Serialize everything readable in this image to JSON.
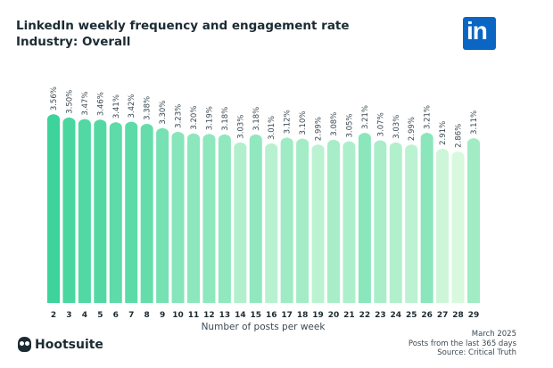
{
  "header": {
    "title": "LinkedIn weekly frequency and engagement rate",
    "subtitle": "Industry: Overall"
  },
  "logo": {
    "text": "in",
    "color": "#0a66c2"
  },
  "brand": {
    "name": "Hootsuite",
    "icon": "owl-icon"
  },
  "footer": {
    "date": "March 2025",
    "note": "Posts from the last 365 days",
    "source": "Source: Critical Truth"
  },
  "chart_data": {
    "type": "bar",
    "title": "LinkedIn weekly frequency and engagement rate",
    "xlabel": "Number of posts per week",
    "ylabel": "",
    "ylim": [
      0,
      3.56
    ],
    "grid": false,
    "categories": [
      "2",
      "3",
      "4",
      "5",
      "6",
      "7",
      "8",
      "9",
      "10",
      "11",
      "12",
      "13",
      "14",
      "15",
      "16",
      "17",
      "18",
      "19",
      "20",
      "21",
      "22",
      "23",
      "24",
      "25",
      "26",
      "27",
      "28",
      "29"
    ],
    "values": [
      3.56,
      3.5,
      3.47,
      3.46,
      3.41,
      3.42,
      3.38,
      3.3,
      3.23,
      3.2,
      3.19,
      3.18,
      3.03,
      3.18,
      3.01,
      3.12,
      3.1,
      2.99,
      3.08,
      3.05,
      3.21,
      3.07,
      3.03,
      2.99,
      3.21,
      2.91,
      2.86,
      3.11
    ],
    "data_labels": [
      "3.56%",
      "3.50%",
      "3.47%",
      "3.46%",
      "3.41%",
      "3.42%",
      "3.38%",
      "3.30%",
      "3.23%",
      "3.20%",
      "3.19%",
      "3.18%",
      "3.03%",
      "3.18%",
      "3.01%",
      "3.12%",
      "3.10%",
      "2.99%",
      "3.08%",
      "3.05%",
      "3.21%",
      "3.07%",
      "3.03%",
      "2.99%",
      "3.21%",
      "2.91%",
      "2.86%",
      "3.11%"
    ],
    "colors": {
      "high": "#3dd39a",
      "low": "#d8f9dd"
    }
  }
}
